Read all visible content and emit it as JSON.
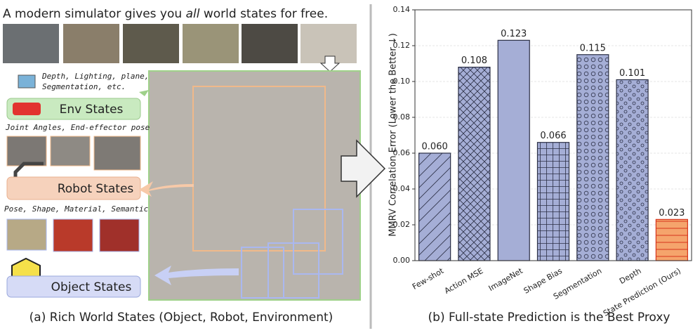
{
  "left_panel": {
    "title_start": "A modern simulator gives you",
    "title_emphasis": "all",
    "title_end": "world states for free.",
    "env_note_lines": [
      "Depth, Lighting, plane,",
      "Segmentation, etc."
    ],
    "env_label": "Env States",
    "robot_note": "Joint Angles, End-effector pose",
    "robot_label": "Robot States",
    "object_note": "Pose, Shape, Material, Semantic",
    "object_label": "Object States",
    "caption": "(a) Rich World States (Object, Robot, Environment)"
  },
  "chart_data": {
    "type": "bar",
    "caption": "(b) Full-state Prediction is the Best Proxy",
    "ylabel": "MMRV Correlation Error (Lower the Better ↓)",
    "categories": [
      "Few-shot",
      "Action MSE",
      "ImageNet",
      "Shape Bias",
      "Segmentation",
      "Depth",
      "State Prediction (Ours)"
    ],
    "values": [
      0.06,
      0.108,
      0.123,
      0.066,
      0.115,
      0.101,
      0.023
    ],
    "value_labels": [
      "0.060",
      "0.108",
      "0.123",
      "0.066",
      "0.115",
      "0.101",
      "0.023"
    ],
    "colors": [
      "#a5aed6",
      "#a5aed6",
      "#a5aed6",
      "#a5aed6",
      "#a5aed6",
      "#a5aed6",
      "#f5a46c"
    ],
    "edge_colors": [
      "#2b2f45",
      "#2b2f45",
      "#2b2f45",
      "#2b2f45",
      "#2b2f45",
      "#2b2f45",
      "#d6341c"
    ],
    "hatches": [
      "/",
      "x",
      "\\",
      "+",
      "O",
      "o",
      ".",
      "-"
    ],
    "ylim": [
      0,
      0.14
    ],
    "yticks": [
      {
        "value": 0,
        "label": "0.00"
      },
      {
        "value": 0.02,
        "label": "0.02"
      },
      {
        "value": 0.04,
        "label": "0.04"
      },
      {
        "value": 0.06,
        "label": "0.06"
      },
      {
        "value": 0.08,
        "label": "0.08"
      },
      {
        "value": 0.1,
        "label": "0.10"
      },
      {
        "value": 0.12,
        "label": "0.12"
      },
      {
        "value": 0.14,
        "label": "0.14"
      }
    ],
    "grid": true
  }
}
